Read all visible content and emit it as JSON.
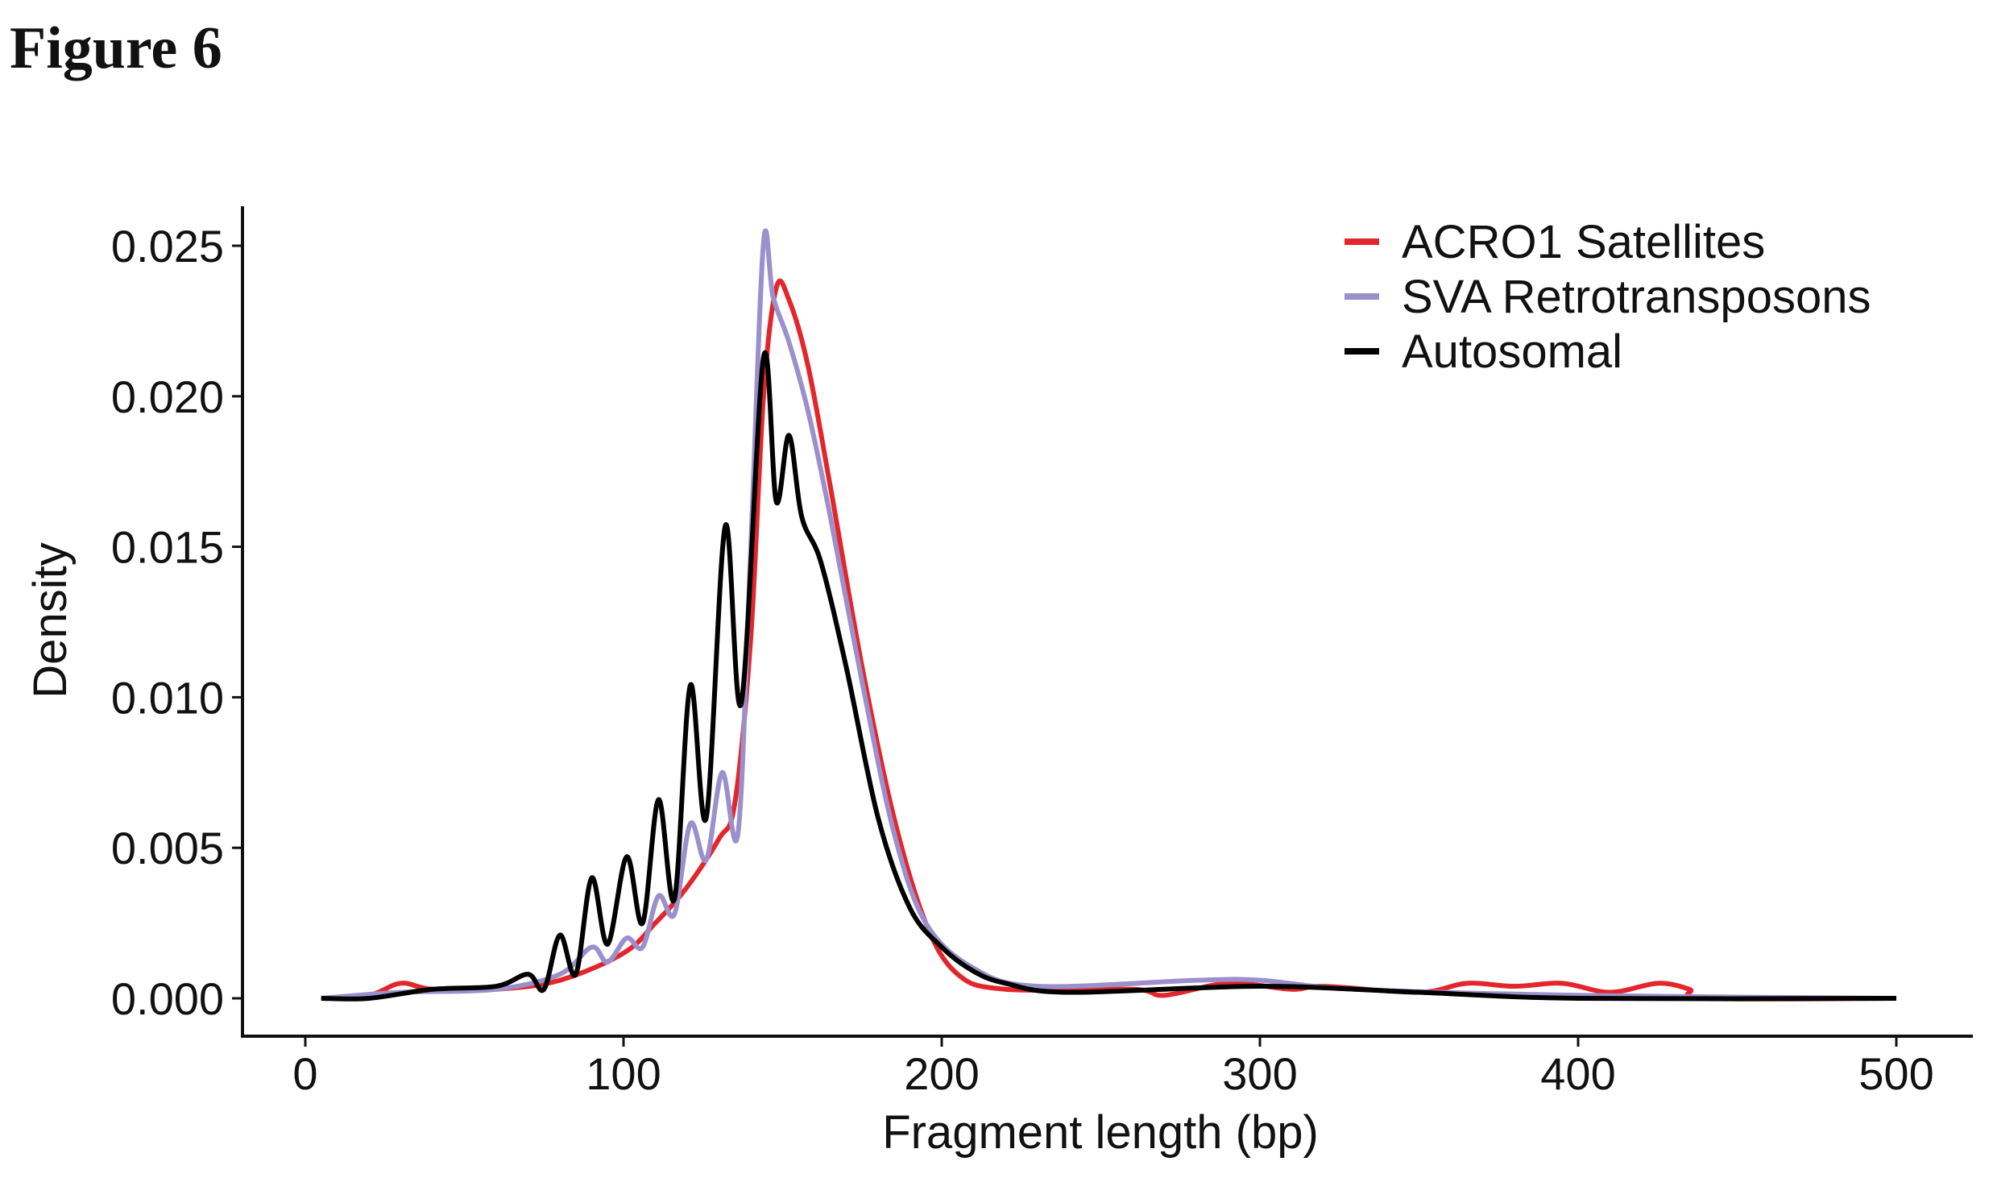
{
  "figure_title": "Figure 6",
  "chart_data": {
    "type": "line",
    "title": "",
    "xlabel": "Fragment length (bp)",
    "ylabel": "Density",
    "xlim": [
      0,
      500
    ],
    "ylim": [
      0,
      0.025
    ],
    "xticks": [
      "0",
      "100",
      "200",
      "300",
      "400",
      "500"
    ],
    "yticks": [
      "0.000",
      "0.005",
      "0.010",
      "0.015",
      "0.020",
      "0.025"
    ],
    "grid": false,
    "legend_position": "top-right",
    "series": [
      {
        "name": "ACRO1 Satellites",
        "color": "#e3262b",
        "points": [
          [
            5,
            0
          ],
          [
            20,
            0.0001
          ],
          [
            30,
            0.0005
          ],
          [
            40,
            0.0003
          ],
          [
            60,
            0.0003
          ],
          [
            80,
            0.0006
          ],
          [
            100,
            0.0015
          ],
          [
            110,
            0.0025
          ],
          [
            120,
            0.0037
          ],
          [
            130,
            0.0053
          ],
          [
            135,
            0.0065
          ],
          [
            140,
            0.012
          ],
          [
            144,
            0.02
          ],
          [
            148,
            0.0236
          ],
          [
            152,
            0.0232
          ],
          [
            158,
            0.021
          ],
          [
            165,
            0.017
          ],
          [
            175,
            0.011
          ],
          [
            185,
            0.006
          ],
          [
            195,
            0.0025
          ],
          [
            205,
            0.0008
          ],
          [
            220,
            0.0003
          ],
          [
            260,
            0.0003
          ],
          [
            270,
            0.0001
          ],
          [
            290,
            0.0005
          ],
          [
            310,
            0.0003
          ],
          [
            320,
            0.0004
          ],
          [
            350,
            0.0002
          ],
          [
            365,
            0.0005
          ],
          [
            380,
            0.0004
          ],
          [
            395,
            0.0005
          ],
          [
            410,
            0.0002
          ],
          [
            425,
            0.0005
          ],
          [
            435,
            0.0003
          ],
          [
            440,
            0
          ],
          [
            500,
            0
          ]
        ]
      },
      {
        "name": "SVA Retrotransposons",
        "color": "#9b8fcc",
        "points": [
          [
            5,
            0
          ],
          [
            30,
            0.0002
          ],
          [
            60,
            0.0003
          ],
          [
            80,
            0.0008
          ],
          [
            90,
            0.0017
          ],
          [
            95,
            0.0012
          ],
          [
            101,
            0.002
          ],
          [
            106,
            0.0017
          ],
          [
            111,
            0.0034
          ],
          [
            116,
            0.0028
          ],
          [
            121,
            0.0058
          ],
          [
            126,
            0.0046
          ],
          [
            131,
            0.0075
          ],
          [
            136,
            0.0055
          ],
          [
            140,
            0.015
          ],
          [
            144,
            0.0251
          ],
          [
            147,
            0.0233
          ],
          [
            152,
            0.0218
          ],
          [
            158,
            0.0195
          ],
          [
            165,
            0.016
          ],
          [
            175,
            0.0105
          ],
          [
            185,
            0.0055
          ],
          [
            195,
            0.0025
          ],
          [
            210,
            0.001
          ],
          [
            230,
            0.0004
          ],
          [
            280,
            0.0006
          ],
          [
            300,
            0.0006
          ],
          [
            330,
            0.0003
          ],
          [
            400,
            0.0001
          ],
          [
            500,
            0
          ]
        ]
      },
      {
        "name": "Autosomal",
        "color": "#000000",
        "points": [
          [
            5,
            0
          ],
          [
            20,
            0
          ],
          [
            40,
            0.0003
          ],
          [
            60,
            0.0004
          ],
          [
            70,
            0.0008
          ],
          [
            75,
            0.0003
          ],
          [
            80,
            0.0021
          ],
          [
            85,
            0.0008
          ],
          [
            90,
            0.004
          ],
          [
            95,
            0.0018
          ],
          [
            101,
            0.0047
          ],
          [
            106,
            0.0025
          ],
          [
            111,
            0.0066
          ],
          [
            116,
            0.0033
          ],
          [
            121,
            0.0104
          ],
          [
            126,
            0.006
          ],
          [
            132,
            0.0157
          ],
          [
            137,
            0.0098
          ],
          [
            144,
            0.0213
          ],
          [
            148,
            0.0165
          ],
          [
            152,
            0.0187
          ],
          [
            156,
            0.016
          ],
          [
            162,
            0.0145
          ],
          [
            170,
            0.011
          ],
          [
            180,
            0.006
          ],
          [
            190,
            0.003
          ],
          [
            200,
            0.0017
          ],
          [
            210,
            0.0009
          ],
          [
            220,
            0.0005
          ],
          [
            240,
            0.0002
          ],
          [
            300,
            0.0004
          ],
          [
            350,
            0.0002
          ],
          [
            400,
            0
          ],
          [
            500,
            0
          ]
        ]
      }
    ]
  }
}
